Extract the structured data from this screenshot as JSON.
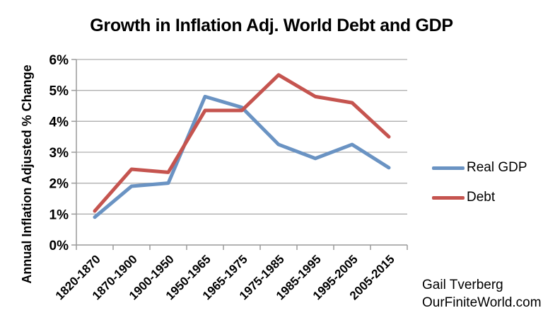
{
  "chart_data": {
    "type": "line",
    "title": "Growth in Inflation Adj. World Debt and GDP",
    "xlabel": "",
    "ylabel": "Annual Inflation Adjusted % Change",
    "categories": [
      "1820-1870",
      "1870-1900",
      "1900-1950",
      "1950-1965",
      "1965-1975",
      "1975-1985",
      "1985-1995",
      "1995-2005",
      "2005-2015"
    ],
    "series": [
      {
        "name": "Real GDP",
        "color": "#6A93C3",
        "values": [
          0.9,
          1.9,
          2.0,
          4.8,
          4.45,
          3.25,
          2.8,
          3.25,
          2.5
        ]
      },
      {
        "name": "Debt",
        "color": "#C5544F",
        "values": [
          1.1,
          2.45,
          2.35,
          4.35,
          4.35,
          5.5,
          4.8,
          4.6,
          3.5
        ]
      }
    ],
    "ylim": [
      0,
      6
    ],
    "ytick_step": 1,
    "ytick_format": "percent",
    "grid": true,
    "legend_position": "right"
  },
  "attribution": {
    "line1": "Gail Tverberg",
    "line2": "OurFiniteWorld.com"
  },
  "colors": {
    "background": "#FFFFFF",
    "text": "#000000",
    "gridline": "#AFAFAF",
    "axis": "#9A9A9A"
  }
}
